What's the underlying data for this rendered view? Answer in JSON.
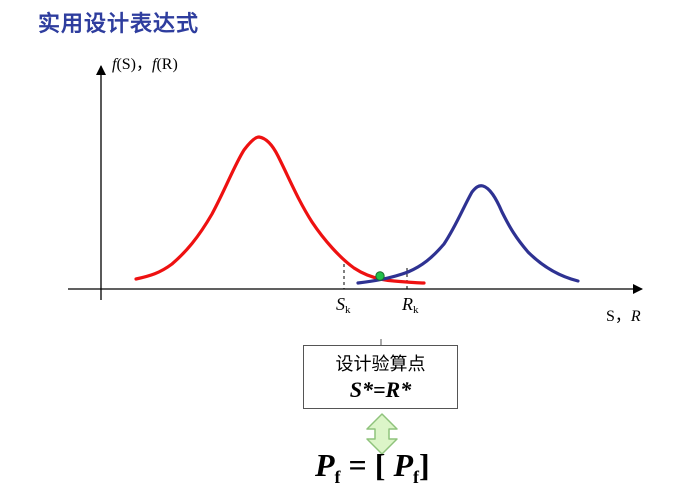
{
  "title": "实用设计表达式",
  "yaxis_label": {
    "f1": "f",
    "s": "(S)，",
    "f2": "f",
    "r": "(R)"
  },
  "xaxis_label": {
    "s": "S，",
    "r": "R"
  },
  "sk_label": {
    "main": "S",
    "sub": "k"
  },
  "rk_label": {
    "main": "R",
    "sub": "k"
  },
  "design_box": {
    "line1": "设计验算点",
    "line2": "S*=R*"
  },
  "formula": {
    "p1": "P",
    "s1": "f",
    "eq": " = [ ",
    "p2": "P",
    "s2": "f",
    "close": "]"
  },
  "colors": {
    "title": "#2e3d9e",
    "load_curve": "#ee1111",
    "resistance_curve": "#2e3292",
    "point": "#22c04a",
    "arrow_fill": "#dcf5c8",
    "arrow_stroke": "#8fc37c"
  },
  "icons": [
    "double-arrow-icon",
    "design-point-dot"
  ]
}
